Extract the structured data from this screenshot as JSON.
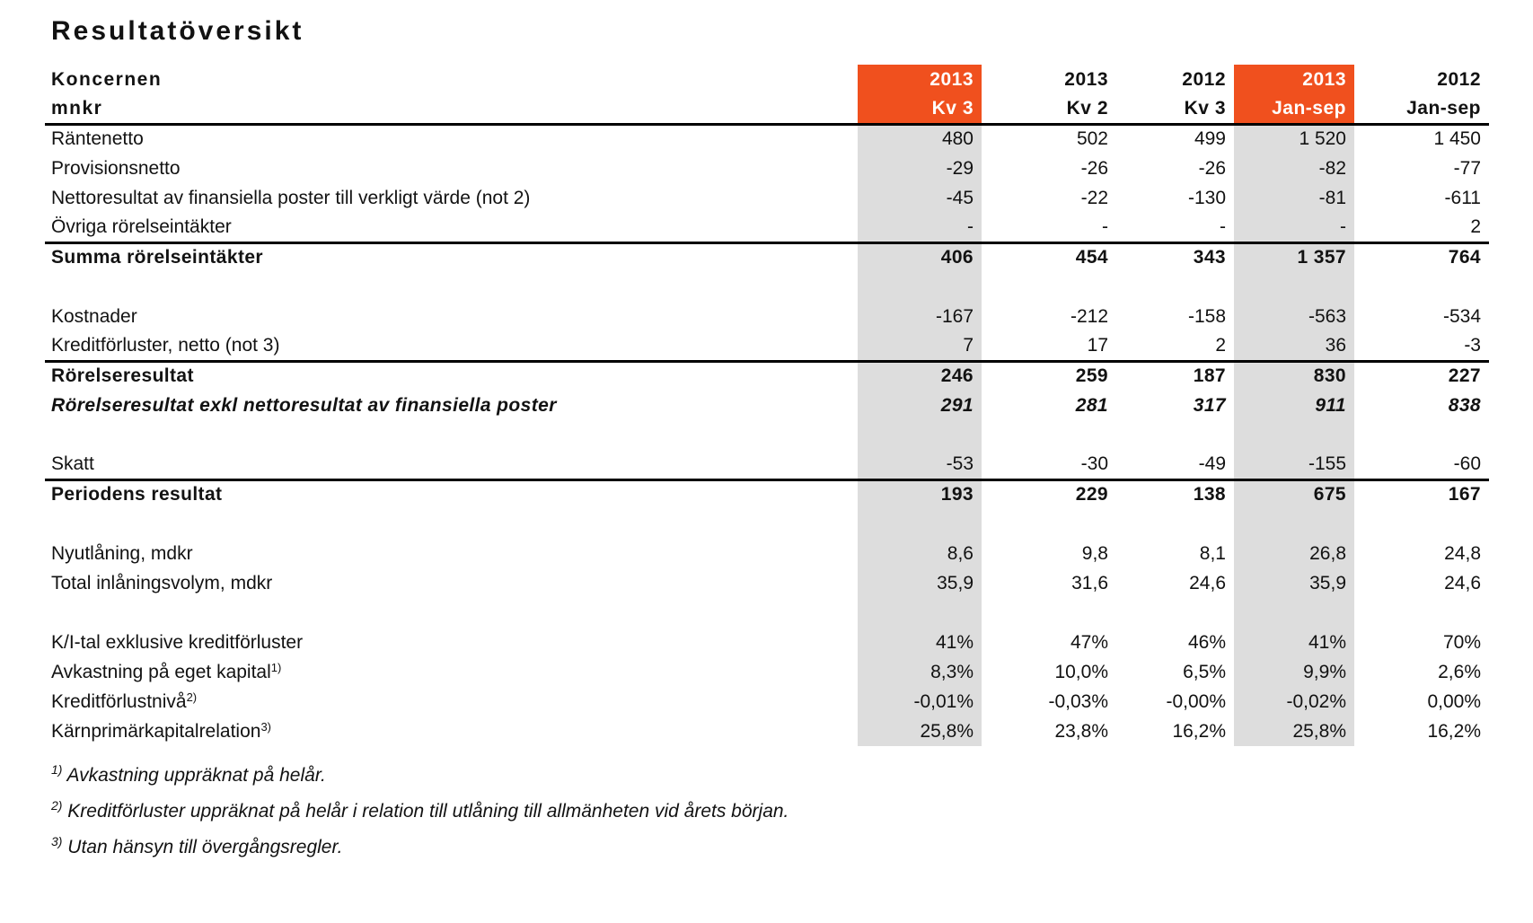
{
  "page": {
    "title": "Resultatöversikt"
  },
  "table": {
    "group_label": "Koncernen",
    "unit_label": "mnkr",
    "columns": [
      {
        "year": "2013",
        "period": "Kv 3",
        "highlighted": true
      },
      {
        "year": "2013",
        "period": "Kv 2",
        "highlighted": false
      },
      {
        "year": "2012",
        "period": "Kv 3",
        "highlighted": false
      },
      {
        "year": "2013",
        "period": "Jan-sep",
        "highlighted": true
      },
      {
        "year": "2012",
        "period": "Jan-sep",
        "highlighted": false
      }
    ],
    "rows": [
      {
        "label": "Räntenetto",
        "values": [
          "480",
          "502",
          "499",
          "1 520",
          "1 450"
        ]
      },
      {
        "label": "Provisionsnetto",
        "values": [
          "-29",
          "-26",
          "-26",
          "-82",
          "-77"
        ]
      },
      {
        "label": "Nettoresultat av finansiella poster till verkligt värde (not 2)",
        "values": [
          "-45",
          "-22",
          "-130",
          "-81",
          "-611"
        ]
      },
      {
        "label": "Övriga rörelseintäkter",
        "values": [
          "-",
          "-",
          "-",
          "-",
          "2"
        ],
        "rule_below": true
      },
      {
        "label": "Summa rörelseintäkter",
        "bold": true,
        "values": [
          "406",
          "454",
          "343",
          "1 357",
          "764"
        ]
      },
      {
        "spacer": true
      },
      {
        "label": "Kostnader",
        "values": [
          "-167",
          "-212",
          "-158",
          "-563",
          "-534"
        ]
      },
      {
        "label": "Kreditförluster, netto (not 3)",
        "values": [
          "7",
          "17",
          "2",
          "36",
          "-3"
        ],
        "rule_below": true
      },
      {
        "label": "Rörelseresultat",
        "bold": true,
        "values": [
          "246",
          "259",
          "187",
          "830",
          "227"
        ]
      },
      {
        "label": "Rörelseresultat exkl nettoresultat av finansiella poster",
        "bold": true,
        "italic": true,
        "values": [
          "291",
          "281",
          "317",
          "911",
          "838"
        ]
      },
      {
        "spacer": true
      },
      {
        "label": "Skatt",
        "values": [
          "-53",
          "-30",
          "-49",
          "-155",
          "-60"
        ],
        "rule_below": true
      },
      {
        "label": "Periodens resultat",
        "bold": true,
        "values": [
          "193",
          "229",
          "138",
          "675",
          "167"
        ]
      },
      {
        "spacer": true
      },
      {
        "label": "Nyutlåning, mdkr",
        "values": [
          "8,6",
          "9,8",
          "8,1",
          "26,8",
          "24,8"
        ]
      },
      {
        "label": "Total inlåningsvolym, mdkr",
        "values": [
          "35,9",
          "31,6",
          "24,6",
          "35,9",
          "24,6"
        ]
      },
      {
        "spacer": true
      },
      {
        "label": "K/I-tal exklusive kreditförluster",
        "values": [
          "41%",
          "47%",
          "46%",
          "41%",
          "70%"
        ]
      },
      {
        "label": "Avkastning på eget kapital",
        "sup": "1)",
        "values": [
          "8,3%",
          "10,0%",
          "6,5%",
          "9,9%",
          "2,6%"
        ]
      },
      {
        "label": "Kreditförlustnivå",
        "sup": "2)",
        "values": [
          "-0,01%",
          "-0,03%",
          "-0,00%",
          "-0,02%",
          "0,00%"
        ]
      },
      {
        "label": "Kärnprimärkapitalrelation",
        "sup": "3)",
        "values": [
          "25,8%",
          "23,8%",
          "16,2%",
          "25,8%",
          "16,2%"
        ]
      }
    ]
  },
  "footnotes": [
    {
      "marker": "1)",
      "text": "Avkastning uppräknat på helår."
    },
    {
      "marker": "2)",
      "text": "Kreditförluster uppräknat på helår i relation till utlåning till allmänheten vid årets början."
    },
    {
      "marker": "3)",
      "text": "Utan hänsyn till övergångsregler."
    }
  ],
  "colors": {
    "accent_orange": "#F0501E",
    "column_shade": "#DDDDDD",
    "rule_black": "#000000"
  }
}
